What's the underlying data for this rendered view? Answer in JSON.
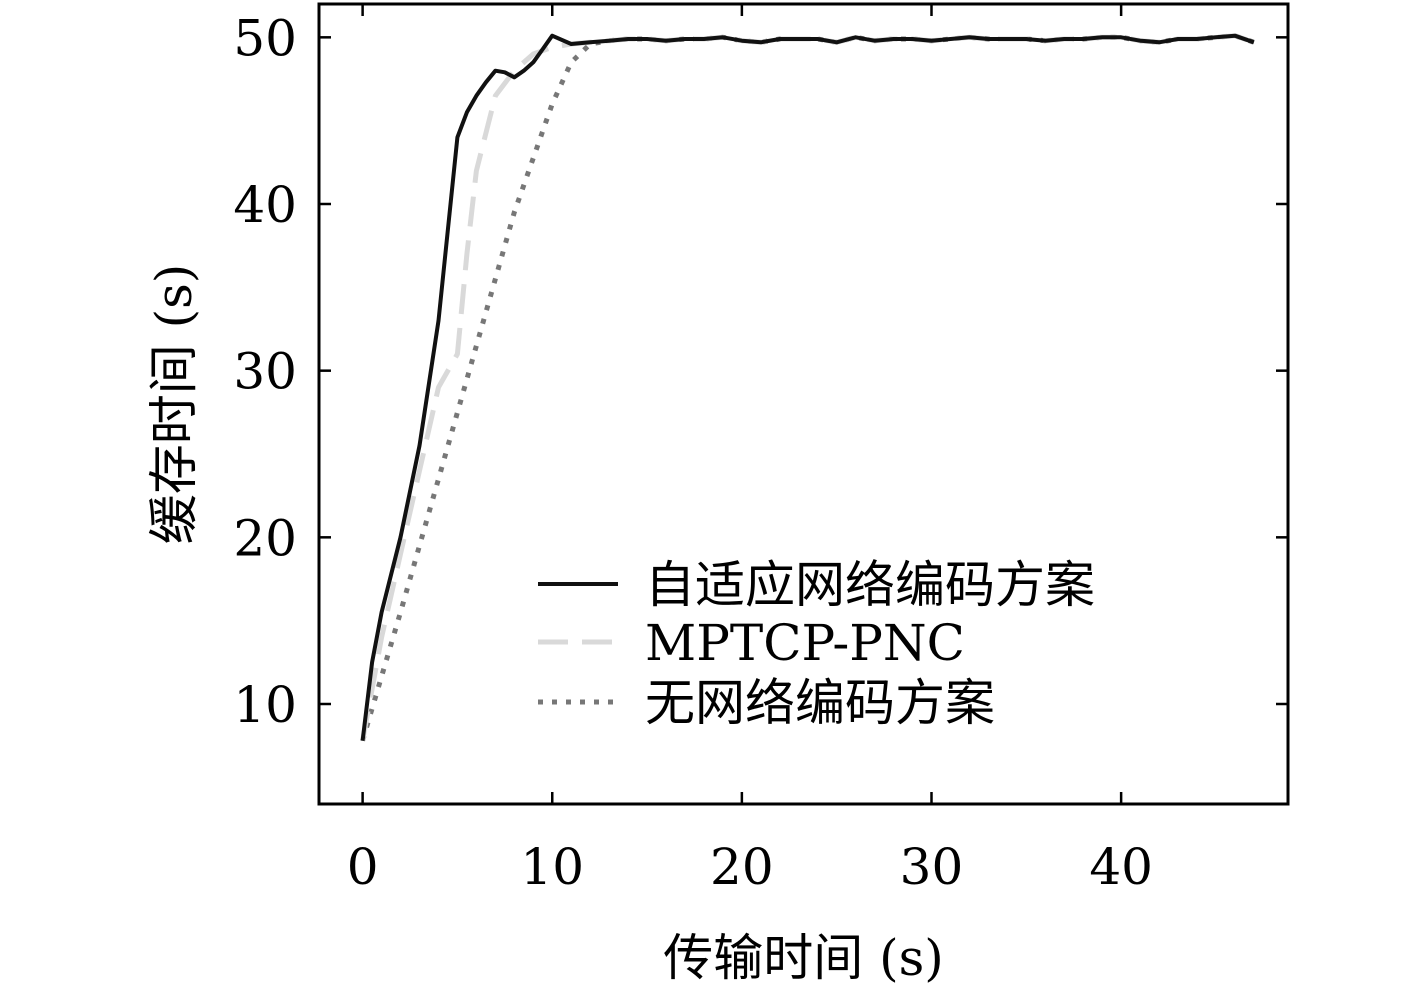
{
  "chart_data": {
    "type": "line",
    "xlabel": "传输时间 (s)",
    "ylabel": "缓存时间 (s)",
    "xlim": [
      -2.3,
      48.8
    ],
    "ylim": [
      4,
      52
    ],
    "xticks": [
      0,
      10,
      20,
      30,
      40
    ],
    "yticks": [
      10,
      20,
      30,
      40,
      50
    ],
    "grid": false,
    "legend_position": "lower-right",
    "series": [
      {
        "name": "自适应网络编码方案",
        "style": "solid",
        "color": "#111111",
        "x": [
          0,
          0.5,
          1,
          2,
          3,
          4,
          5,
          5.5,
          6,
          6.5,
          7,
          7.5,
          8,
          8.5,
          9,
          9.5,
          10,
          11,
          12,
          13,
          14,
          15,
          16,
          17,
          18,
          19,
          20,
          21,
          22,
          23,
          24,
          25,
          26,
          27,
          28,
          29,
          30,
          31,
          32,
          33,
          34,
          35,
          36,
          37,
          38,
          39,
          40,
          41,
          42,
          43,
          44,
          45,
          46,
          47
        ],
        "y": [
          7.8,
          12.5,
          15.5,
          20,
          25.5,
          33,
          44,
          45.5,
          46.5,
          47.3,
          48,
          47.9,
          47.6,
          48,
          48.5,
          49.3,
          50.1,
          49.6,
          49.7,
          49.8,
          49.9,
          49.9,
          49.8,
          49.9,
          49.9,
          50,
          49.8,
          49.7,
          49.9,
          49.9,
          49.9,
          49.7,
          50,
          49.8,
          49.9,
          49.9,
          49.8,
          49.9,
          50,
          49.9,
          49.9,
          49.9,
          49.8,
          49.9,
          49.9,
          50,
          50,
          49.8,
          49.7,
          49.9,
          49.9,
          50,
          50.1,
          49.7
        ]
      },
      {
        "name": "MPTCP-PNC",
        "style": "dashed",
        "color": "#d9d9d9",
        "x": [
          0,
          1,
          2,
          3,
          4,
          5,
          5.5,
          6,
          7,
          8,
          9,
          10,
          11,
          12,
          13,
          14,
          15,
          16,
          17,
          18,
          19,
          20,
          21,
          22,
          23,
          24,
          25,
          26,
          27,
          28,
          29,
          30,
          31,
          32,
          33,
          34,
          35,
          36,
          37,
          38,
          39,
          40,
          41,
          42,
          43,
          44,
          45,
          46,
          47
        ],
        "y": [
          7.8,
          14,
          19,
          24,
          29,
          31,
          37,
          42,
          46.5,
          48,
          49,
          49.4,
          49.6,
          49.7,
          49.8,
          49.9,
          49.9,
          49.8,
          49.9,
          49.9,
          50,
          49.8,
          49.7,
          49.9,
          49.9,
          49.9,
          49.7,
          50,
          49.8,
          49.9,
          49.9,
          49.8,
          49.9,
          50,
          49.9,
          49.9,
          49.9,
          49.8,
          49.9,
          49.9,
          50,
          50,
          49.8,
          49.7,
          49.9,
          49.9,
          50,
          50.1,
          49.7
        ]
      },
      {
        "name": "无网络编码方案",
        "style": "dotted",
        "color": "#777777",
        "x": [
          0,
          2,
          4,
          6,
          8,
          10,
          11,
          12,
          13,
          14,
          15,
          16,
          17,
          18,
          19,
          20,
          21,
          22,
          23,
          24,
          25,
          26,
          27,
          28,
          29,
          30,
          31,
          32,
          33,
          34,
          35,
          36,
          37,
          38,
          39,
          40,
          41,
          42,
          43,
          44,
          45,
          46,
          47
        ],
        "y": [
          7.8,
          15.5,
          23.5,
          31.5,
          39.5,
          46,
          48.5,
          49.6,
          49.8,
          49.9,
          49.9,
          49.8,
          49.9,
          49.9,
          50,
          49.8,
          49.7,
          49.9,
          49.9,
          49.9,
          49.7,
          50,
          49.8,
          49.9,
          49.9,
          49.8,
          49.9,
          50,
          49.9,
          49.9,
          49.9,
          49.8,
          49.9,
          49.9,
          50,
          50,
          49.8,
          49.7,
          49.9,
          49.9,
          50,
          50.1,
          49.7
        ]
      }
    ]
  }
}
